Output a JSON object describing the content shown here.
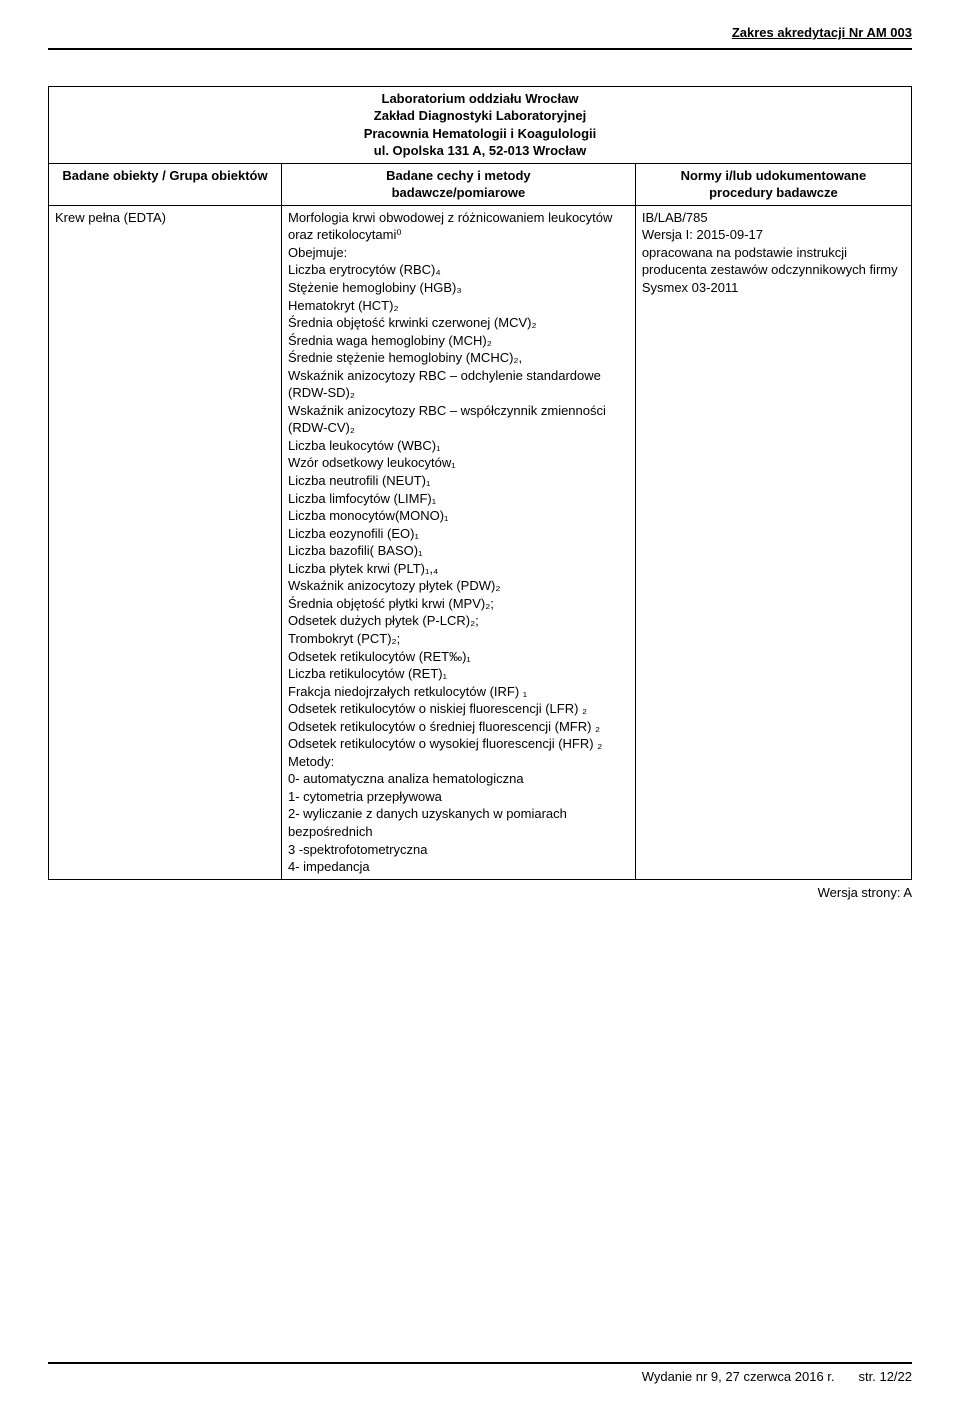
{
  "header": {
    "accreditation": "Zakres akredytacji Nr AM 003"
  },
  "lab": {
    "line1": "Laboratorium oddziału Wrocław",
    "line2": "Zakład Diagnostyki Laboratoryjnej",
    "line3": "Pracownia Hematologii i Koagulologii",
    "line4": "ul. Opolska 131 A, 52-013 Wrocław"
  },
  "table": {
    "head": {
      "c1": "Badane obiekty / Grupa obiektów",
      "c2a": "Badane cechy i metody",
      "c2b": "badawcze/pomiarowe",
      "c3a": "Normy i/lub udokumentowane",
      "c3b": "procedury badawcze"
    },
    "row": {
      "c1": "Krew pełna (EDTA)",
      "c2": [
        "Morfologia krwi obwodowej z różnicowaniem leukocytów oraz retikolocytami⁰",
        "Obejmuje:",
        "Liczba erytrocytów (RBC)₄",
        "Stężenie hemoglobiny (HGB)₃",
        "Hematokryt (HCT)₂",
        "Średnia objętość krwinki czerwonej (MCV)₂",
        "Średnia waga hemoglobiny (MCH)₂",
        "Średnie stężenie hemoglobiny (MCHC)₂,",
        "Wskaźnik anizocytozy RBC – odchylenie standardowe (RDW-SD)₂",
        "Wskaźnik anizocytozy RBC – współczynnik zmienności (RDW-CV)₂",
        "Liczba leukocytów (WBC)₁",
        "Wzór odsetkowy leukocytów₁",
        "Liczba neutrofili (NEUT)₁",
        "Liczba limfocytów (LIMF)₁",
        "Liczba monocytów(MONO)₁",
        "Liczba eozynofili (EO)₁",
        "Liczba bazofili( BASO)₁",
        "Liczba płytek krwi (PLT)₁,₄",
        "Wskaźnik anizocytozy płytek (PDW)₂",
        "Średnia objętość płytki krwi (MPV)₂;",
        "Odsetek dużych płytek (P-LCR)₂;",
        "Trombokryt (PCT)₂;",
        "Odsetek retikulocytów (RET‰)₁",
        "Liczba retikulocytów (RET)₁",
        "Frakcja niedojrzałych retkulocytów (IRF) ₁",
        "Odsetek retikulocytów o niskiej fluorescencji (LFR) ₂",
        "Odsetek retikulocytów o średniej fluorescencji (MFR) ₂",
        "Odsetek retikulocytów o wysokiej fluorescencji (HFR) ₂",
        "Metody:",
        "0- automatyczna analiza  hematologiczna",
        "1- cytometria przepływowa",
        "2- wyliczanie z danych uzyskanych w pomiarach bezpośrednich",
        "3 -spektrofotometryczna",
        "4- impedancja"
      ],
      "c3": [
        "IB/LAB/785",
        "Wersja I: 2015-09-17",
        "opracowana na podstawie instrukcji producenta zestawów odczynnikowych firmy Sysmex 03-2011"
      ]
    }
  },
  "version_line": "Wersja strony: A",
  "footer": {
    "edition": "Wydanie nr 9, 27 czerwca 2016 r.",
    "page": "str. 12/22"
  }
}
